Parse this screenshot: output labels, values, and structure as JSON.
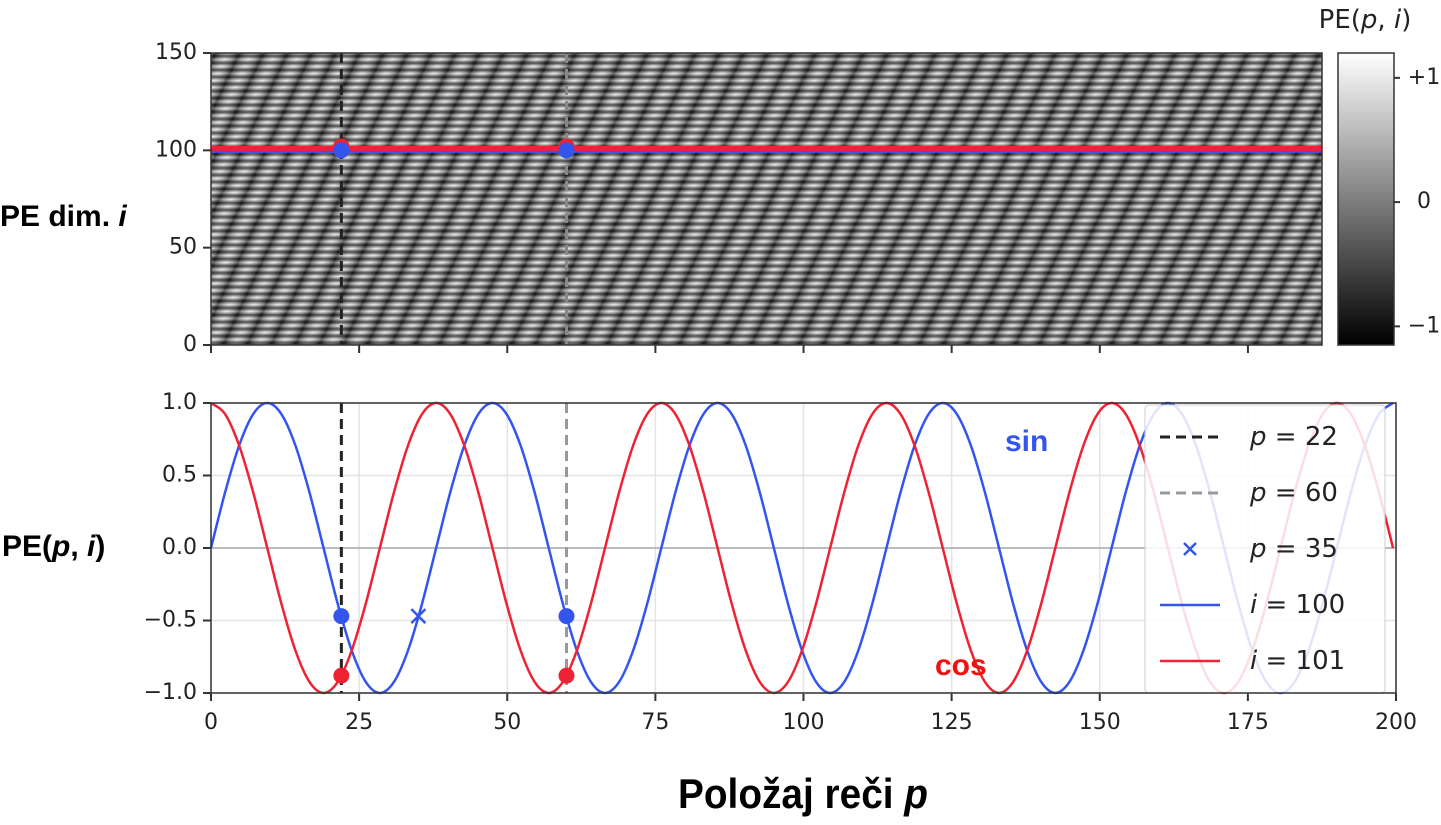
{
  "chart_data": [
    {
      "type": "heatmap",
      "ylabel": "PE dim. i",
      "xlim": [
        0,
        187.5
      ],
      "xticks": [
        0,
        25,
        50,
        75,
        100,
        125,
        150,
        175
      ],
      "xticklabels": false,
      "ylim": [
        0,
        150
      ],
      "yticks": [
        0,
        50,
        100,
        150
      ],
      "grid": false,
      "colorbar": {
        "title": "PE(p, i)",
        "lim": [
          -1.15,
          1.2
        ],
        "ticks": [
          {
            "value": 1,
            "label": "+1"
          },
          0,
          {
            "value": -1,
            "label": "−1"
          }
        ]
      },
      "hlines": [
        {
          "value": 100,
          "color": "#3355ee"
        },
        {
          "value": 101,
          "color": "#ee2233"
        }
      ],
      "vlines": [
        {
          "value": 22,
          "color": "#222222"
        },
        {
          "value": 60,
          "color": "#888888"
        }
      ],
      "markers": [
        {
          "marker": "o",
          "color": "#ee2233",
          "x": [
            22,
            60
          ],
          "values": [
            102,
            102
          ]
        },
        {
          "marker": "o",
          "color": "#3355ee",
          "x": [
            22,
            60
          ],
          "values": [
            100,
            100
          ]
        }
      ]
    },
    {
      "type": "line",
      "xlabel": "Položaj reči p",
      "ylabel": "PE(p, i)",
      "xlim": [
        0,
        200
      ],
      "xticks": [
        0,
        25,
        50,
        75,
        100,
        125,
        150,
        175,
        200
      ],
      "ylim": [
        -1,
        1
      ],
      "yticks": [
        {
          "value": -1,
          "label": "−1.0"
        },
        {
          "value": -0.5,
          "label": "−0.5"
        },
        {
          "value": 0,
          "label": "0.0"
        },
        {
          "value": 0.5,
          "label": "0.5"
        },
        {
          "value": 1,
          "label": "1.0"
        }
      ],
      "grid": true,
      "legend": "upper right",
      "hlines": [
        {
          "value": 0,
          "color": "#aaaaaa"
        }
      ],
      "vlines": [
        {
          "name": "p = 22",
          "value": 22,
          "color": "#222222"
        },
        {
          "name": "p = 60",
          "value": 60,
          "color": "#999999"
        }
      ],
      "markers": [
        {
          "name": "p = 35",
          "marker": "x",
          "color": "#3355ee",
          "x": [
            35
          ],
          "values": [
            -0.47
          ]
        },
        {
          "marker": "o",
          "color": "#3355ee",
          "x": [
            22,
            60
          ],
          "values": [
            -0.47,
            -0.47
          ]
        },
        {
          "marker": "o",
          "color": "#ee2233",
          "x": [
            22,
            60
          ],
          "values": [
            -0.88,
            -0.88
          ]
        }
      ],
      "annotations": [
        {
          "text": "sin",
          "color": "#3355ee"
        },
        {
          "text": "cos",
          "color": "#ee1111"
        }
      ],
      "x": [
        0,
        2.375,
        4.75,
        7.125,
        9.5,
        11.875,
        14.25,
        16.625,
        19,
        21.375,
        23.75,
        26.125,
        28.5,
        30.875,
        33.25,
        35.625,
        38,
        40.375,
        42.75,
        45.125,
        47.5,
        49.875,
        52.25,
        54.625,
        57,
        59.375,
        61.75,
        64.125,
        66.5,
        68.875,
        71.25,
        73.625,
        76,
        78.375,
        80.75,
        83.125,
        85.5,
        87.875,
        90.25,
        92.625,
        95,
        97.375,
        99.75,
        102.125,
        104.5,
        106.875,
        109.25,
        111.625,
        114,
        116.375,
        118.75,
        121.125,
        123.5,
        125.875,
        128.25,
        130.625,
        133,
        135.375,
        137.75,
        140.125,
        142.5,
        144.875,
        147.25,
        149.625,
        152,
        154.375,
        156.75,
        159.125,
        161.5,
        163.875,
        166.25,
        168.625,
        171,
        173.375,
        175.75,
        178.125,
        180.5,
        182.875,
        185.25,
        187.625,
        190,
        192.375,
        194.75,
        197.125,
        199.5
      ],
      "series": [
        {
          "name": "i = 100",
          "color": "#3355ee",
          "values": [
            0,
            0.383,
            0.707,
            0.924,
            1,
            0.924,
            0.707,
            0.383,
            0,
            -0.383,
            -0.707,
            -0.924,
            -1,
            -0.924,
            -0.707,
            -0.383,
            0,
            0.383,
            0.707,
            0.924,
            1,
            0.924,
            0.707,
            0.383,
            0,
            -0.383,
            -0.707,
            -0.924,
            -1,
            -0.924,
            -0.707,
            -0.383,
            0,
            0.383,
            0.707,
            0.924,
            1,
            0.924,
            0.707,
            0.383,
            0,
            -0.383,
            -0.707,
            -0.924,
            -1,
            -0.924,
            -0.707,
            -0.383,
            0,
            0.383,
            0.707,
            0.924,
            1,
            0.924,
            0.707,
            0.383,
            0,
            -0.383,
            -0.707,
            -0.924,
            -1,
            -0.924,
            -0.707,
            -0.383,
            0,
            0.383,
            0.707,
            0.924,
            1,
            0.924,
            0.707,
            0.383,
            0,
            -0.383,
            -0.707,
            -0.924,
            -1,
            -0.924,
            -0.707,
            -0.383,
            0,
            0.383,
            0.707,
            0.924,
            1
          ]
        },
        {
          "name": "i = 101",
          "color": "#ee2233",
          "values": [
            1,
            0.924,
            0.707,
            0.383,
            0,
            -0.383,
            -0.707,
            -0.924,
            -1,
            -0.924,
            -0.707,
            -0.383,
            0,
            0.383,
            0.707,
            0.924,
            1,
            0.924,
            0.707,
            0.383,
            0,
            -0.383,
            -0.707,
            -0.924,
            -1,
            -0.924,
            -0.707,
            -0.383,
            0,
            0.383,
            0.707,
            0.924,
            1,
            0.924,
            0.707,
            0.383,
            0,
            -0.383,
            -0.707,
            -0.924,
            -1,
            -0.924,
            -0.707,
            -0.383,
            0,
            0.383,
            0.707,
            0.924,
            1,
            0.924,
            0.707,
            0.383,
            0,
            -0.383,
            -0.707,
            -0.924,
            -1,
            -0.924,
            -0.707,
            -0.383,
            0,
            0.383,
            0.707,
            0.924,
            1,
            0.924,
            0.707,
            0.383,
            0,
            -0.383,
            -0.707,
            -0.924,
            -1,
            -0.924,
            -0.707,
            -0.383,
            0,
            0.383,
            0.707,
            0.924,
            1,
            0.924,
            0.707,
            0.383,
            0
          ]
        }
      ]
    }
  ]
}
